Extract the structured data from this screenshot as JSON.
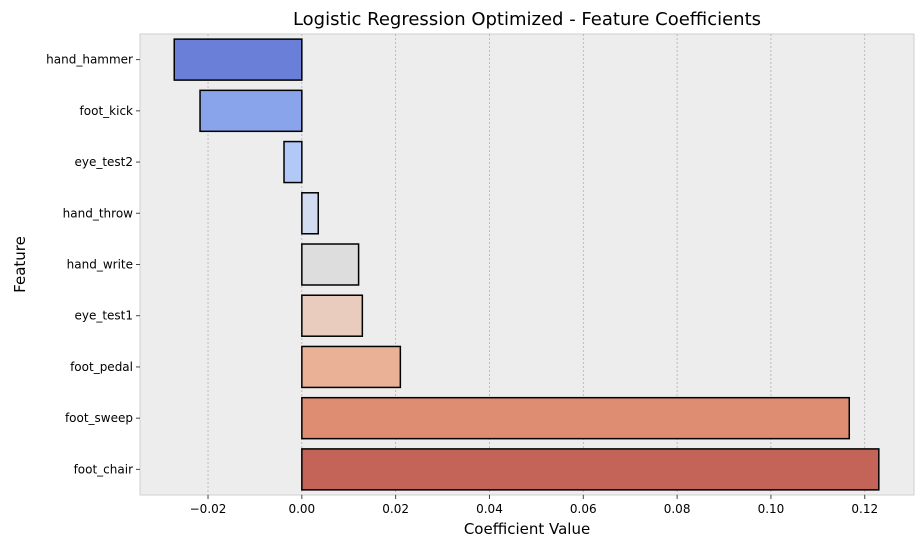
{
  "chart_data": {
    "type": "bar",
    "orientation": "horizontal",
    "title": "Logistic Regression Optimized - Feature Coefficients",
    "xlabel": "Coefficient Value",
    "ylabel": "Feature",
    "categories": [
      "hand_hammer",
      "foot_kick",
      "eye_test2",
      "hand_throw",
      "hand_write",
      "eye_test1",
      "foot_pedal",
      "foot_sweep",
      "foot_chair"
    ],
    "values": [
      -0.0272,
      -0.0217,
      -0.0038,
      0.0035,
      0.0121,
      0.0129,
      0.021,
      0.1167,
      0.123
    ],
    "bar_colors": [
      "#6a7fd8",
      "#8aa4ec",
      "#b2c8f6",
      "#d1dcf0",
      "#dddddd",
      "#eaccbf",
      "#ebb196",
      "#de8c72",
      "#c46358"
    ],
    "xlim": [
      -0.0345,
      0.1305
    ],
    "xticks": [
      -0.02,
      0.0,
      0.02,
      0.04,
      0.06,
      0.08,
      0.1,
      0.12
    ],
    "xtick_labels": [
      "−0.02",
      "0.00",
      "0.02",
      "0.04",
      "0.06",
      "0.08",
      "0.10",
      "0.12"
    ],
    "grid": "x-axis, dotted",
    "legend": "none",
    "plot_background": "#ededed"
  }
}
